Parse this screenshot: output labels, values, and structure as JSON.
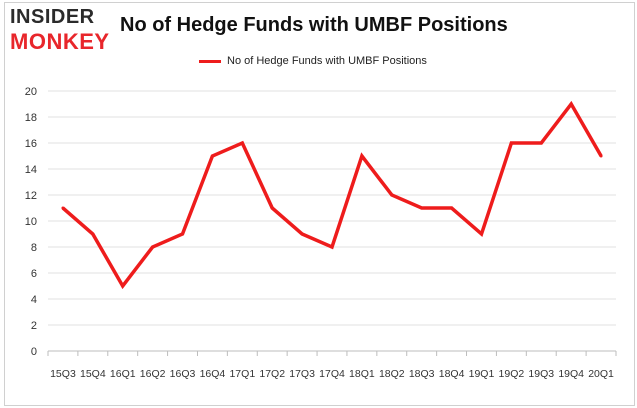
{
  "logo": {
    "line1": "INSIDER",
    "line2": "MONKEY"
  },
  "chart_data": {
    "type": "line",
    "title": "No of Hedge Funds with UMBF Positions",
    "xlabel": "",
    "ylabel": "",
    "categories": [
      "2015Q3",
      "2015Q4",
      "2016Q1",
      "2016Q2",
      "2016Q3",
      "2016Q4",
      "2017Q1",
      "2017Q2",
      "2017Q3",
      "2017Q4",
      "2018Q1",
      "2018Q2",
      "2018Q3",
      "2018Q4",
      "2019Q1",
      "2019Q2",
      "2019Q3",
      "2019Q4",
      "2020Q1"
    ],
    "tick_labels": [
      "15Q3",
      "15Q4",
      "16Q1",
      "16Q2",
      "16Q3",
      "16Q4",
      "17Q1",
      "17Q2",
      "17Q3",
      "17Q4",
      "18Q1",
      "18Q2",
      "18Q3",
      "18Q4",
      "19Q1",
      "19Q2",
      "19Q3",
      "19Q4",
      "20Q1"
    ],
    "series": [
      {
        "name": "No of Hedge Funds with UMBF Positions",
        "color": "#ee1c1c",
        "values": [
          11,
          9,
          5,
          8,
          9,
          15,
          16,
          11,
          9,
          8,
          15,
          12,
          11,
          11,
          9,
          16,
          16,
          19,
          15
        ]
      }
    ],
    "ylim": [
      0,
      20
    ],
    "yticks": [
      0,
      2,
      4,
      6,
      8,
      10,
      12,
      14,
      16,
      18,
      20
    ],
    "grid": true,
    "legend": "top-center"
  }
}
